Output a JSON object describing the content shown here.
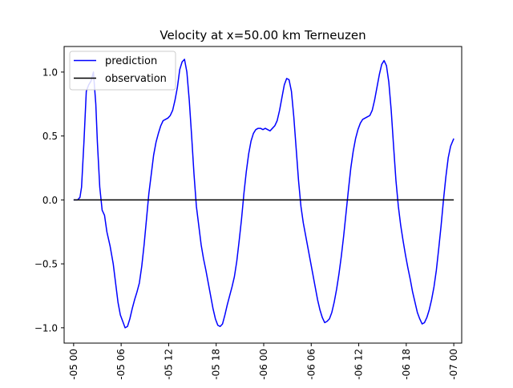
{
  "chart_data": {
    "type": "line",
    "title": "Velocity at x=50.00 km Terneuzen",
    "xlabel": "",
    "ylabel": "",
    "x_axis": "hours",
    "xlim": [
      -1.2,
      49.0
    ],
    "ylim": [
      -1.12,
      1.2
    ],
    "grid": false,
    "legend_position": "top-left",
    "x_ticks": [
      {
        "value": 0,
        "label": "-05 00"
      },
      {
        "value": 6,
        "label": "-05 06"
      },
      {
        "value": 12,
        "label": "-05 12"
      },
      {
        "value": 18,
        "label": "-05 18"
      },
      {
        "value": 24,
        "label": "-06 00"
      },
      {
        "value": 30,
        "label": "-06 06"
      },
      {
        "value": 36,
        "label": "-06 12"
      },
      {
        "value": 42,
        "label": "-06 18"
      },
      {
        "value": 48,
        "label": "-07 00"
      }
    ],
    "y_ticks": [
      {
        "value": 1.0,
        "label": "1.0"
      },
      {
        "value": 0.5,
        "label": "0.5"
      },
      {
        "value": 0.0,
        "label": "0.0"
      },
      {
        "value": -0.5,
        "label": "−0.5"
      },
      {
        "value": -1.0,
        "label": "−1.0"
      }
    ],
    "series": [
      {
        "name": "prediction",
        "color": "#0000ff",
        "x": [
          0.0,
          0.5,
          0.8,
          1.0,
          1.3,
          1.6,
          1.9,
          2.2,
          2.5,
          2.8,
          3.0,
          3.3,
          3.6,
          3.9,
          4.2,
          4.6,
          5.0,
          5.3,
          5.6,
          5.9,
          6.2,
          6.5,
          6.8,
          7.1,
          7.4,
          7.7,
          8.0,
          8.3,
          8.6,
          8.9,
          9.2,
          9.5,
          9.8,
          10.1,
          10.4,
          10.7,
          11.0,
          11.3,
          11.6,
          11.9,
          12.2,
          12.5,
          12.8,
          13.1,
          13.4,
          13.7,
          14.0,
          14.3,
          14.6,
          14.9,
          15.2,
          15.5,
          15.8,
          16.1,
          16.4,
          16.7,
          17.0,
          17.3,
          17.6,
          17.9,
          18.2,
          18.5,
          18.8,
          19.1,
          19.4,
          19.7,
          20.0,
          20.3,
          20.6,
          20.9,
          21.2,
          21.5,
          21.8,
          22.1,
          22.4,
          22.7,
          23.0,
          23.3,
          23.6,
          23.9,
          24.2,
          24.5,
          24.8,
          25.1,
          25.4,
          25.7,
          26.0,
          26.3,
          26.6,
          26.9,
          27.2,
          27.5,
          27.8,
          28.1,
          28.4,
          28.7,
          29.0,
          29.3,
          29.6,
          29.9,
          30.2,
          30.5,
          30.8,
          31.1,
          31.4,
          31.7,
          32.0,
          32.3,
          32.6,
          32.9,
          33.2,
          33.5,
          33.8,
          34.1,
          34.4,
          34.7,
          35.0,
          35.3,
          35.6,
          35.9,
          36.2,
          36.5,
          36.8,
          37.1,
          37.4,
          37.7,
          38.0,
          38.3,
          38.6,
          38.9,
          39.2,
          39.5,
          39.8,
          40.1,
          40.4,
          40.7,
          41.0,
          41.3,
          41.6,
          41.9,
          42.2,
          42.5,
          42.8,
          43.1,
          43.4,
          43.7,
          44.0,
          44.3,
          44.6,
          44.9,
          45.2,
          45.5,
          45.8,
          46.1,
          46.4,
          46.7,
          47.0,
          47.3,
          47.6,
          48.0
        ],
        "y": [
          0.0,
          0.0,
          0.02,
          0.1,
          0.45,
          0.85,
          0.9,
          0.93,
          1.0,
          0.75,
          0.45,
          0.1,
          -0.08,
          -0.12,
          -0.25,
          -0.36,
          -0.5,
          -0.65,
          -0.8,
          -0.9,
          -0.95,
          -1.0,
          -0.99,
          -0.93,
          -0.85,
          -0.78,
          -0.72,
          -0.65,
          -0.52,
          -0.35,
          -0.15,
          0.05,
          0.2,
          0.35,
          0.45,
          0.52,
          0.58,
          0.62,
          0.63,
          0.64,
          0.66,
          0.7,
          0.78,
          0.88,
          1.02,
          1.08,
          1.1,
          1.0,
          0.78,
          0.5,
          0.2,
          -0.05,
          -0.2,
          -0.35,
          -0.46,
          -0.55,
          -0.65,
          -0.75,
          -0.85,
          -0.93,
          -0.98,
          -0.99,
          -0.97,
          -0.9,
          -0.82,
          -0.75,
          -0.68,
          -0.6,
          -0.48,
          -0.32,
          -0.15,
          0.05,
          0.22,
          0.36,
          0.46,
          0.52,
          0.55,
          0.56,
          0.56,
          0.55,
          0.56,
          0.55,
          0.54,
          0.56,
          0.58,
          0.62,
          0.7,
          0.8,
          0.9,
          0.95,
          0.94,
          0.85,
          0.65,
          0.4,
          0.15,
          -0.05,
          -0.18,
          -0.28,
          -0.38,
          -0.48,
          -0.58,
          -0.68,
          -0.78,
          -0.86,
          -0.92,
          -0.96,
          -0.95,
          -0.93,
          -0.88,
          -0.8,
          -0.7,
          -0.58,
          -0.44,
          -0.28,
          -0.1,
          0.08,
          0.25,
          0.38,
          0.48,
          0.55,
          0.6,
          0.63,
          0.64,
          0.65,
          0.66,
          0.7,
          0.78,
          0.88,
          0.98,
          1.06,
          1.09,
          1.05,
          0.92,
          0.7,
          0.42,
          0.15,
          -0.05,
          -0.2,
          -0.32,
          -0.43,
          -0.53,
          -0.62,
          -0.72,
          -0.8,
          -0.88,
          -0.93,
          -0.97,
          -0.96,
          -0.92,
          -0.86,
          -0.78,
          -0.68,
          -0.55,
          -0.38,
          -0.2,
          0.0,
          0.18,
          0.33,
          0.42,
          0.48
        ]
      },
      {
        "name": "observation",
        "color": "#000000",
        "x": [
          0.0,
          48.0
        ],
        "y": [
          0.0,
          0.0
        ]
      }
    ]
  }
}
